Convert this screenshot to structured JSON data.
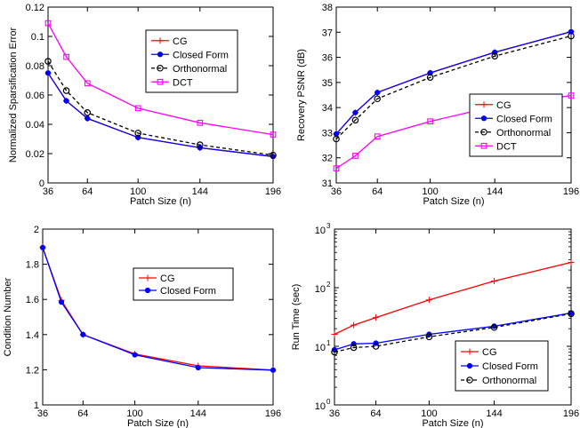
{
  "chart_data": [
    {
      "type": "line",
      "xlabel": "Patch Size (n)",
      "ylabel": "Normalized Sparsification Error",
      "x": [
        36,
        49,
        64,
        100,
        144,
        196
      ],
      "xlim": [
        36,
        196
      ],
      "ylim": [
        0,
        0.12
      ],
      "yscale": "linear",
      "xticks": [
        36,
        64,
        100,
        144,
        196
      ],
      "yticks": [
        0,
        0.02,
        0.04,
        0.06,
        0.08,
        0.1,
        0.12
      ],
      "yticklabels": [
        "0",
        "0.02",
        "0.04",
        "0.06",
        "0.08",
        "0.1",
        "0.12"
      ],
      "legend_position": "top-right",
      "series": [
        {
          "name": "CG",
          "color": "#ff0000",
          "marker": "plus",
          "dash": "solid",
          "values": [
            0.075,
            0.056,
            0.044,
            0.031,
            0.024,
            0.018
          ]
        },
        {
          "name": "Closed Form",
          "color": "#0000ff",
          "marker": "dot",
          "dash": "solid",
          "values": [
            0.075,
            0.056,
            0.044,
            0.031,
            0.024,
            0.018
          ]
        },
        {
          "name": "Orthonormal",
          "color": "#000000",
          "marker": "circle",
          "dash": "dashed",
          "values": [
            0.083,
            0.063,
            0.048,
            0.034,
            0.026,
            0.019
          ]
        },
        {
          "name": "DCT",
          "color": "#ff00ff",
          "marker": "square",
          "dash": "solid",
          "values": [
            0.109,
            0.086,
            0.068,
            0.051,
            0.041,
            0.033
          ]
        }
      ]
    },
    {
      "type": "line",
      "xlabel": "Patch Size (n)",
      "ylabel": "Recovery PSNR (dB)",
      "x": [
        36,
        49,
        64,
        100,
        144,
        196
      ],
      "xlim": [
        36,
        196
      ],
      "ylim": [
        31,
        38
      ],
      "yscale": "linear",
      "xticks": [
        36,
        64,
        100,
        144,
        196
      ],
      "yticks": [
        31,
        32,
        33,
        34,
        35,
        36,
        37,
        38
      ],
      "yticklabels": [
        "31",
        "32",
        "33",
        "34",
        "35",
        "36",
        "37",
        "38"
      ],
      "legend_position": "bottom-right",
      "series": [
        {
          "name": "CG",
          "color": "#ff0000",
          "marker": "plus",
          "dash": "solid",
          "values": [
            32.95,
            33.8,
            34.6,
            35.38,
            36.2,
            37.02
          ]
        },
        {
          "name": "Closed Form",
          "color": "#0000ff",
          "marker": "dot",
          "dash": "solid",
          "values": [
            32.95,
            33.8,
            34.6,
            35.38,
            36.2,
            37.02
          ]
        },
        {
          "name": "Orthonormal",
          "color": "#000000",
          "marker": "circle",
          "dash": "dashed",
          "values": [
            32.75,
            33.5,
            34.35,
            35.2,
            36.05,
            36.85
          ]
        },
        {
          "name": "DCT",
          "color": "#ff00ff",
          "marker": "square",
          "dash": "solid",
          "values": [
            31.58,
            32.08,
            32.85,
            33.45,
            34.05,
            34.48
          ]
        }
      ]
    },
    {
      "type": "line",
      "xlabel": "Patch Size (n)",
      "ylabel": "Condition Number",
      "x": [
        36,
        49,
        64,
        100,
        144,
        196
      ],
      "xlim": [
        36,
        196
      ],
      "ylim": [
        1,
        2
      ],
      "yscale": "linear",
      "xticks": [
        36,
        64,
        100,
        144,
        196
      ],
      "yticks": [
        1,
        1.2,
        1.4,
        1.6,
        1.8,
        2
      ],
      "yticklabels": [
        "1",
        "1.2",
        "1.4",
        "1.6",
        "1.8",
        "2"
      ],
      "legend_position": "upper-middle-right",
      "series": [
        {
          "name": "CG",
          "color": "#ff0000",
          "marker": "plus",
          "dash": "solid",
          "values": [
            1.895,
            1.595,
            1.4,
            1.29,
            1.222,
            1.198
          ]
        },
        {
          "name": "Closed Form",
          "color": "#0000ff",
          "marker": "dot",
          "dash": "solid",
          "values": [
            1.895,
            1.585,
            1.4,
            1.285,
            1.212,
            1.198
          ]
        }
      ]
    },
    {
      "type": "line",
      "xlabel": "Patch Size (n)",
      "ylabel": "Run Time (sec)",
      "x": [
        36,
        49,
        64,
        100,
        144,
        196
      ],
      "xlim": [
        36,
        196
      ],
      "ylim": [
        1,
        1000
      ],
      "yscale": "log",
      "xticks": [
        36,
        64,
        100,
        144,
        196
      ],
      "yticks": [
        1,
        10,
        100,
        1000
      ],
      "yticklabels": [
        "10",
        "10",
        "10",
        "10"
      ],
      "ytickexp": [
        "0",
        "1",
        "2",
        "3"
      ],
      "legend_position": "bottom-right",
      "series": [
        {
          "name": "CG",
          "color": "#ff0000",
          "marker": "plus",
          "dash": "solid",
          "values": [
            16,
            23,
            31,
            62,
            130,
            270
          ]
        },
        {
          "name": "Closed Form",
          "color": "#0000ff",
          "marker": "dot",
          "dash": "solid",
          "values": [
            8.7,
            11,
            11.3,
            16,
            22,
            37
          ]
        },
        {
          "name": "Orthonormal",
          "color": "#000000",
          "marker": "circle",
          "dash": "dashed",
          "values": [
            8,
            9.5,
            10,
            14.5,
            21,
            36
          ]
        }
      ]
    }
  ]
}
